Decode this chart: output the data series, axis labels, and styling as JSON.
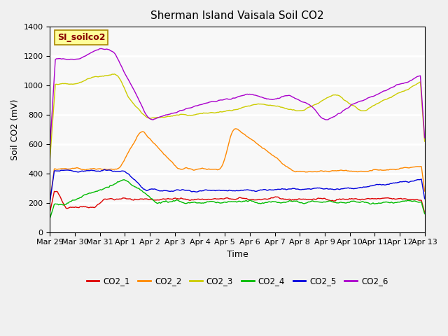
{
  "title": "Sherman Island Vaisala Soil CO2",
  "xlabel": "Time",
  "ylabel": "Soil CO2 (mV)",
  "ylim": [
    0,
    1400
  ],
  "yticks": [
    0,
    200,
    400,
    600,
    800,
    1000,
    1200,
    1400
  ],
  "x_labels": [
    "Mar 29",
    "Mar 30",
    "Mar 31",
    "Apr 1",
    "Apr 2",
    "Apr 3",
    "Apr 4",
    "Apr 5",
    "Apr 6",
    "Apr 7",
    "Apr 8",
    "Apr 9",
    "Apr 10",
    "Apr 11",
    "Apr 12",
    "Apr 13"
  ],
  "label_box_text": "SI_soilco2",
  "label_box_color": "#ffff99",
  "label_box_border": "#aa8800",
  "colors": {
    "CO2_1": "#dd0000",
    "CO2_2": "#ff8800",
    "CO2_3": "#cccc00",
    "CO2_4": "#00bb00",
    "CO2_5": "#0000dd",
    "CO2_6": "#aa00cc"
  },
  "bg_color": "#f0f0f0",
  "plot_bg": "#f8f8f8",
  "grid_color": "#ffffff",
  "n_points": 350
}
